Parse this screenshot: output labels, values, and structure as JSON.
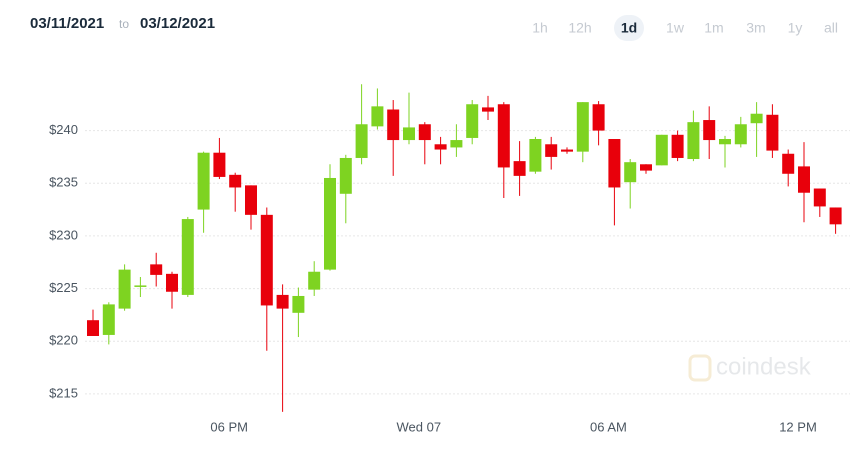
{
  "header": {
    "from": "03/11/2021",
    "to_word": "to",
    "to": "03/12/2021",
    "ranges": [
      "1h",
      "12h",
      "1d",
      "1w",
      "1m",
      "3m",
      "1y",
      "all"
    ],
    "active": "1d"
  },
  "watermark": "coindesk",
  "chart_data": {
    "type": "candlestick",
    "categories": [
      null,
      null,
      null,
      null,
      null,
      null,
      null,
      null,
      null,
      "06 PM",
      null,
      null,
      null,
      null,
      null,
      null,
      null,
      null,
      null,
      null,
      null,
      "Wed 07",
      null,
      null,
      null,
      null,
      null,
      null,
      null,
      null,
      null,
      null,
      null,
      "06 AM",
      null,
      null,
      null,
      null,
      null,
      null,
      null,
      null,
      null,
      null,
      null,
      "12 PM",
      null,
      null
    ],
    "open": [
      222.0,
      220.6,
      223.1,
      225.3,
      227.3,
      226.4,
      224.4,
      232.5,
      237.9,
      235.8,
      234.8,
      232.0,
      224.4,
      222.7,
      224.9,
      226.8,
      234.0,
      237.4,
      240.4,
      242.0,
      239.1,
      240.6,
      238.7,
      238.4,
      239.3,
      242.2,
      242.5,
      237.1,
      236.1,
      238.7,
      238.2,
      238.0,
      242.5,
      239.2,
      235.1,
      236.8,
      236.7,
      239.6,
      237.3,
      241.0,
      238.7,
      238.7,
      240.7,
      241.5,
      237.8,
      236.6,
      234.5,
      232.7
    ],
    "high": [
      223.0,
      223.7,
      227.3,
      226.1,
      228.4,
      226.6,
      231.8,
      238.0,
      239.3,
      236.0,
      234.8,
      232.7,
      225.4,
      225.1,
      227.6,
      236.8,
      237.7,
      244.4,
      244.0,
      242.9,
      243.6,
      240.8,
      239.4,
      240.6,
      242.9,
      243.3,
      242.7,
      239.0,
      239.4,
      239.4,
      238.4,
      242.7,
      242.8,
      239.2,
      237.3,
      236.8,
      239.6,
      240.0,
      241.9,
      242.3,
      239.5,
      241.3,
      242.7,
      242.5,
      238.2,
      238.9,
      234.5,
      232.7
    ],
    "low": [
      220.5,
      219.7,
      222.9,
      224.2,
      225.2,
      223.1,
      224.2,
      230.3,
      235.4,
      232.3,
      230.6,
      219.1,
      213.3,
      220.4,
      224.3,
      226.7,
      231.2,
      236.8,
      240.1,
      235.7,
      238.7,
      236.8,
      236.8,
      237.5,
      238.7,
      241.0,
      233.6,
      233.8,
      235.9,
      236.3,
      237.8,
      237.0,
      238.6,
      231.0,
      232.6,
      235.9,
      236.7,
      237.1,
      237.1,
      237.3,
      236.5,
      238.4,
      237.5,
      237.4,
      234.7,
      231.3,
      231.8,
      230.2
    ],
    "close": [
      220.5,
      223.5,
      226.8,
      225.3,
      226.3,
      224.7,
      231.6,
      237.9,
      235.6,
      234.6,
      232.0,
      223.4,
      223.1,
      224.3,
      226.6,
      235.5,
      237.4,
      240.6,
      242.3,
      239.1,
      240.3,
      239.1,
      238.2,
      239.1,
      242.5,
      241.8,
      236.5,
      235.7,
      239.2,
      237.5,
      238.0,
      242.7,
      240.0,
      234.6,
      237.0,
      236.2,
      239.6,
      237.4,
      240.8,
      239.1,
      239.2,
      240.6,
      241.6,
      238.1,
      235.9,
      234.1,
      232.8,
      231.1
    ],
    "up_color": "#7ed321",
    "down_color": "#e8000b",
    "ylim": [
      213.0,
      246.7
    ],
    "yticks": [
      {
        "value": 215,
        "label": "$215"
      },
      {
        "value": 220,
        "label": "$220"
      },
      {
        "value": 225,
        "label": "$225"
      },
      {
        "value": 230,
        "label": "$230"
      },
      {
        "value": 235,
        "label": "$235"
      },
      {
        "value": 240,
        "label": "$240"
      }
    ],
    "grid": true
  }
}
